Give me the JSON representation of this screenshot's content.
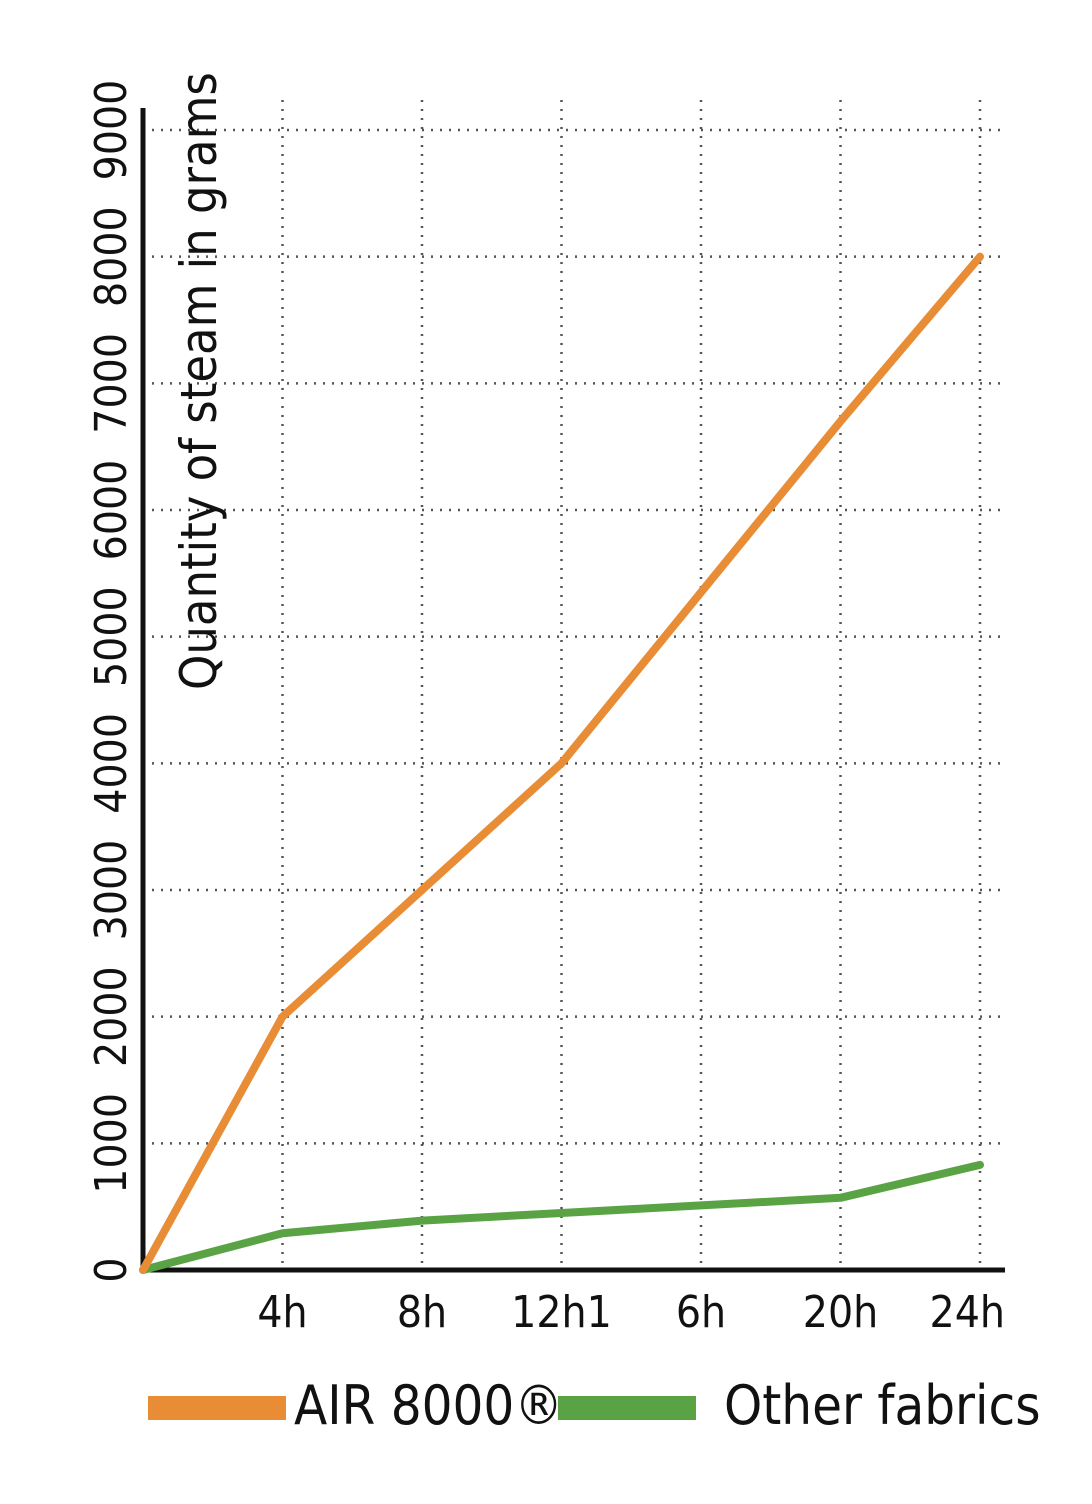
{
  "chart_data": {
    "type": "line",
    "ylabel": "Quantity of steam in grams",
    "xlabel": "",
    "ylim": [
      0,
      9000
    ],
    "yticks": [
      0,
      1000,
      2000,
      3000,
      4000,
      5000,
      6000,
      7000,
      8000,
      9000
    ],
    "x_tick_labels": [
      "4h",
      "8h",
      "12h1",
      "6h",
      "20h",
      "24h"
    ],
    "x": [
      0,
      4,
      8,
      12,
      16,
      20,
      24
    ],
    "xlim": [
      0,
      24
    ],
    "grid": true,
    "legend_position": "bottom",
    "series": [
      {
        "name": "AIR 8000®",
        "color": "#e88d35",
        "values": [
          0,
          2000,
          3000,
          4000,
          5350,
          6700,
          8000
        ]
      },
      {
        "name": "Other fabrics",
        "color": "#5aa345",
        "values": [
          0,
          290,
          390,
          450,
          510,
          570,
          830
        ]
      }
    ]
  }
}
